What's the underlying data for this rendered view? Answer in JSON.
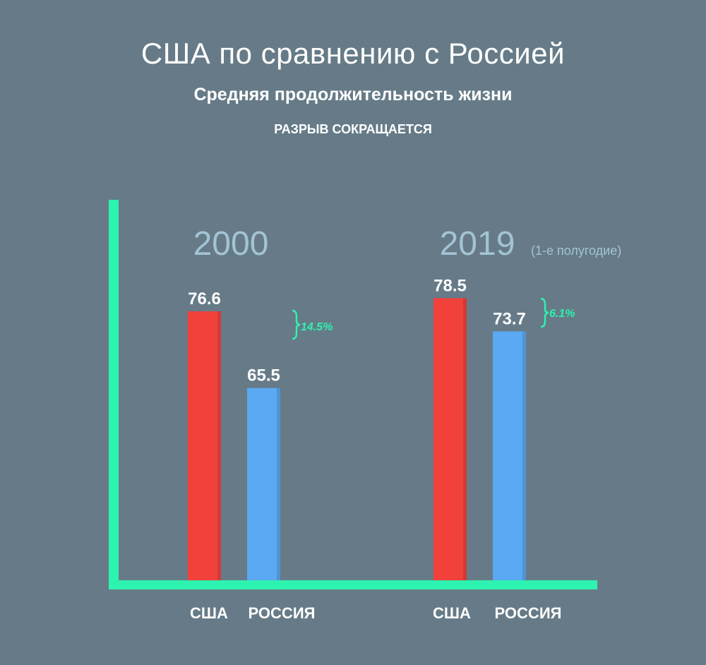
{
  "title": "США по сравнению с Россией",
  "subtitle": "Средняя продолжительность жизни",
  "tagline": "РАЗРЫВ СОКРАЩАЕТСЯ",
  "colors": {
    "usa": "#f2413b",
    "russia": "#5aa9f2",
    "axis": "#2ef2b0",
    "gap": "#2ef2b0",
    "year": "#a3c3d6",
    "background": "#667b87"
  },
  "chart_data": {
    "type": "bar",
    "categories": [
      "2000",
      "2019"
    ],
    "category_notes": [
      "",
      "(1-е полугодие)"
    ],
    "series": [
      {
        "name": "США",
        "values": [
          76.6,
          78.5
        ]
      },
      {
        "name": "РОССИЯ",
        "values": [
          65.5,
          73.7
        ]
      }
    ],
    "gaps": [
      "14.5%",
      "6.1%"
    ],
    "x_labels": [
      "США",
      "РОССИЯ",
      "США",
      "РОССИЯ"
    ],
    "ylim": [
      0,
      100
    ],
    "grid": false,
    "legend": "none"
  }
}
